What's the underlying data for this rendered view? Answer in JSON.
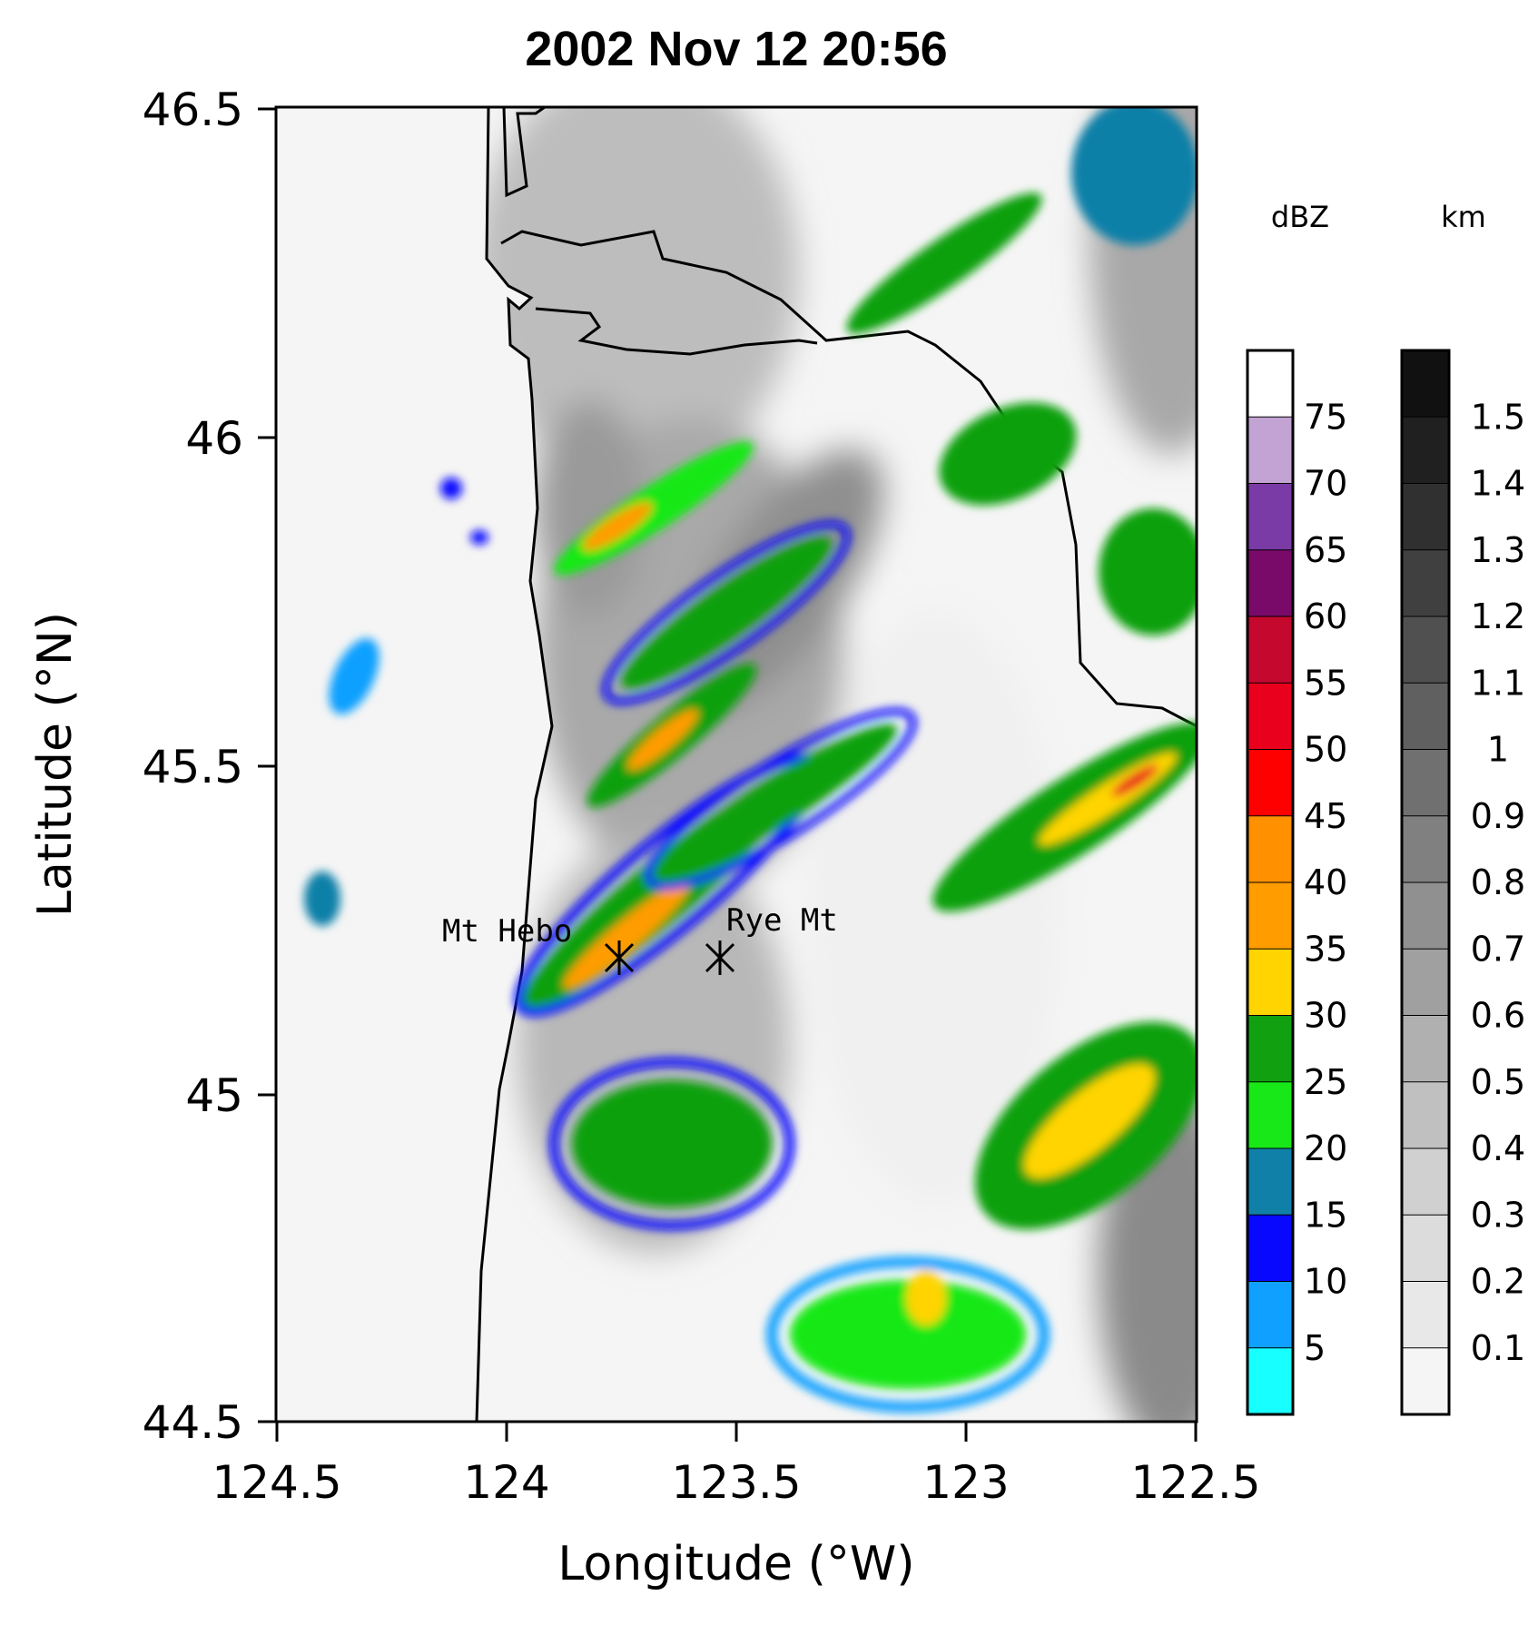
{
  "title": "2002 Nov 12 20:56",
  "xlabel": "Longitude (°W)",
  "ylabel": "Latitude (°N)",
  "xticks": [
    "124.5",
    "124",
    "123.5",
    "123",
    "122.5"
  ],
  "yticks": [
    "46.5",
    "46",
    "45.5",
    "45",
    "44.5"
  ],
  "sites": [
    {
      "name": "Mt Hebo",
      "lon": 123.76,
      "lat": 45.21
    },
    {
      "name": "Rye Mt",
      "lon": 123.54,
      "lat": 45.21
    }
  ],
  "dbz_colorbar": {
    "unit": "dBZ",
    "labels": [
      "75",
      "70",
      "65",
      "60",
      "55",
      "50",
      "45",
      "40",
      "35",
      "30",
      "25",
      "20",
      "15",
      "10",
      "5"
    ],
    "colors": [
      "#ffffff",
      "#c3a3d3",
      "#7a3ba6",
      "#7a0a6a",
      "#c4082e",
      "#e8001c",
      "#ff0000",
      "#ff9000",
      "#ff9c00",
      "#ffd400",
      "#10a010",
      "#18e818",
      "#1080a8",
      "#0808ff",
      "#10a0ff",
      "#18ffff"
    ]
  },
  "terrain_colorbar": {
    "unit": "km",
    "labels": [
      "1.5",
      "1.4",
      "1.3",
      "1.2",
      "1.1",
      "1",
      "0.9",
      "0.8",
      "0.7",
      "0.6",
      "0.5",
      "0.4",
      "0.3",
      "0.2",
      "0.1"
    ],
    "colors": [
      "#111111",
      "#202020",
      "#303030",
      "#404040",
      "#505050",
      "#606060",
      "#707070",
      "#808080",
      "#909090",
      "#a0a0a0",
      "#b0b0b0",
      "#c0c0c0",
      "#d0d0d0",
      "#dcdcdc",
      "#e8e8e8",
      "#f5f5f5"
    ]
  },
  "chart_data": {
    "type": "map",
    "xlim": [
      124.5,
      122.5
    ],
    "ylim": [
      44.5,
      46.5
    ],
    "x_unit": "°W",
    "y_unit": "°N",
    "fields": [
      "radar reflectivity (dBZ)",
      "terrain height (km)"
    ]
  }
}
